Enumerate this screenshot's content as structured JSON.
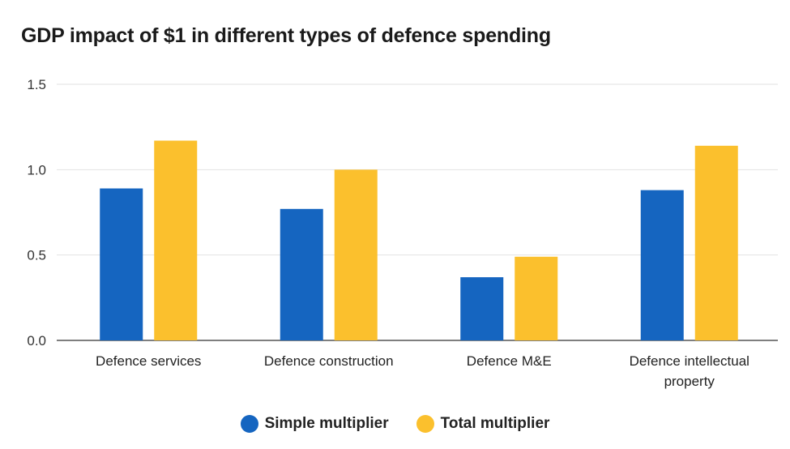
{
  "chart_data": {
    "type": "bar",
    "title": "GDP impact of $1 in different types of defence spending",
    "categories": [
      [
        "Defence services"
      ],
      [
        "Defence construction"
      ],
      [
        "Defence M&E"
      ],
      [
        "Defence intellectual",
        "property"
      ]
    ],
    "series": [
      {
        "name": "Simple multiplier",
        "color": "#1565c0",
        "values": [
          0.89,
          0.77,
          0.37,
          0.88
        ]
      },
      {
        "name": "Total multiplier",
        "color": "#fbc02d",
        "values": [
          1.17,
          1.0,
          0.49,
          1.14
        ]
      }
    ],
    "ylim": [
      0,
      1.5
    ],
    "yticks": [
      "0.0",
      "0.5",
      "1.0",
      "1.5"
    ],
    "grid": true,
    "legend_position": "bottom"
  }
}
